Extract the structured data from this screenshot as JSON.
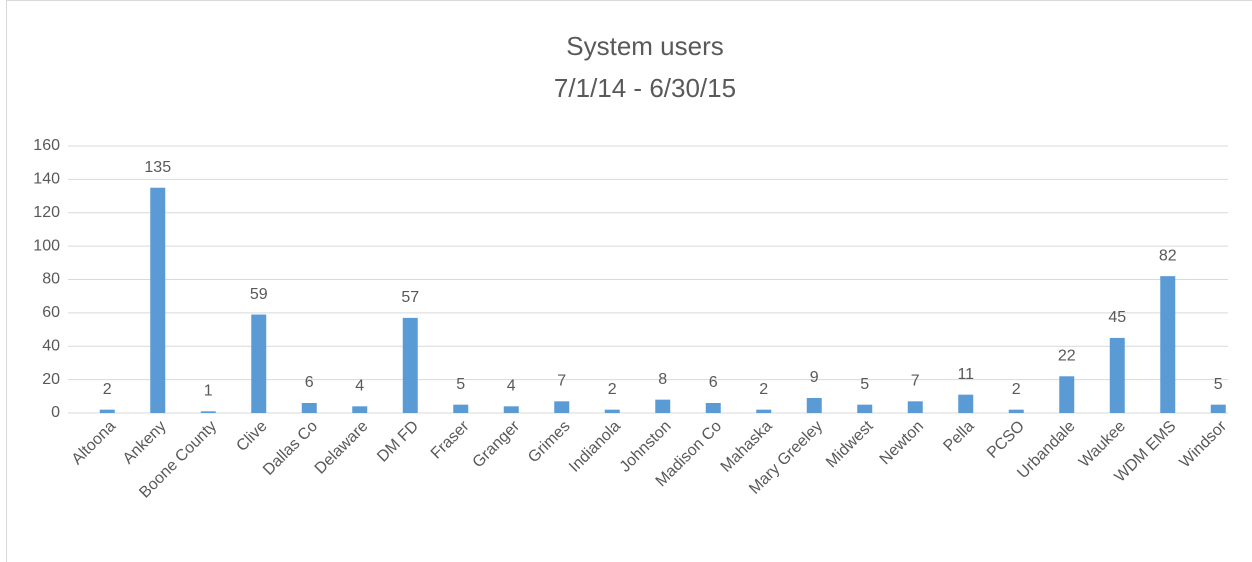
{
  "chart_data": {
    "type": "bar",
    "title": "System users",
    "subtitle": "7/1/14 - 6/30/15",
    "categories": [
      "Altoona",
      "Ankeny",
      "Boone County",
      "Clive",
      "Dallas Co",
      "Delaware",
      "DM FD",
      "Fraser",
      "Granger",
      "Grimes",
      "Indianola",
      "Johnston",
      "Madison Co",
      "Mahaska",
      "Mary Greeley",
      "Midwest",
      "Newton",
      "Pella",
      "PCSO",
      "Urbandale",
      "Waukee",
      "WDM EMS",
      "Windsor"
    ],
    "values": [
      2,
      135,
      1,
      59,
      6,
      4,
      57,
      5,
      4,
      7,
      2,
      8,
      6,
      2,
      9,
      5,
      7,
      11,
      2,
      22,
      45,
      82,
      5
    ],
    "color": "#5b9bd5",
    "ylim": [
      0,
      160
    ],
    "yticks": [
      0,
      20,
      40,
      60,
      80,
      100,
      120,
      140,
      160
    ],
    "grid": true
  }
}
